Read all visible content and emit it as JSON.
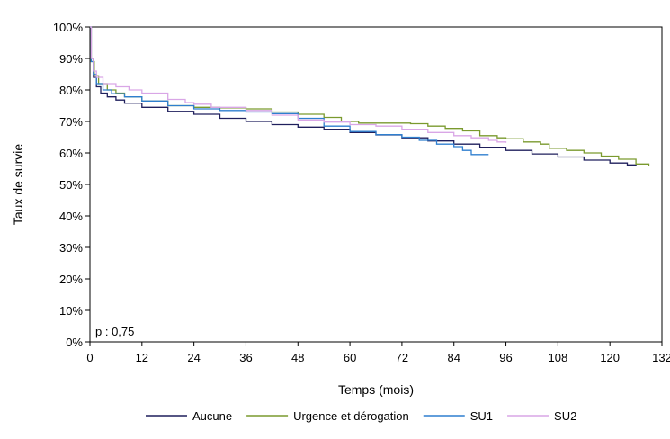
{
  "chart_data": {
    "type": "line",
    "xlabel": "Temps (mois)",
    "ylabel": "Taux de survie",
    "xlim": [
      0,
      132
    ],
    "ylim": [
      0,
      100
    ],
    "x_ticks": [
      0,
      12,
      24,
      36,
      48,
      60,
      72,
      84,
      96,
      108,
      120,
      132
    ],
    "y_ticks": [
      0,
      10,
      20,
      30,
      40,
      50,
      60,
      70,
      80,
      90,
      100
    ],
    "y_tick_labels": [
      "0%",
      "10%",
      "20%",
      "30%",
      "40%",
      "50%",
      "60%",
      "70%",
      "80%",
      "90%",
      "100%"
    ],
    "annotation": "p : 0,75",
    "grid": false,
    "legend_position": "bottom",
    "series": [
      {
        "name": "Aucune",
        "color": "#1f1f5c",
        "points": [
          [
            0,
            100
          ],
          [
            0.3,
            90
          ],
          [
            0.8,
            84
          ],
          [
            1.5,
            81
          ],
          [
            2.5,
            79
          ],
          [
            4,
            77.8
          ],
          [
            6,
            76.8
          ],
          [
            8,
            75.8
          ],
          [
            12,
            74.5
          ],
          [
            18,
            73.2
          ],
          [
            24,
            72.3
          ],
          [
            30,
            71
          ],
          [
            36,
            70
          ],
          [
            42,
            69
          ],
          [
            48,
            68.2
          ],
          [
            54,
            67.5
          ],
          [
            60,
            66.5
          ],
          [
            66,
            65.7
          ],
          [
            72,
            64.8
          ],
          [
            78,
            63.8
          ],
          [
            84,
            62.8
          ],
          [
            90,
            61.8
          ],
          [
            96,
            60.8
          ],
          [
            102,
            59.7
          ],
          [
            108,
            58.7
          ],
          [
            114,
            57.7
          ],
          [
            120,
            56.8
          ],
          [
            124,
            56.2
          ],
          [
            126,
            56
          ]
        ]
      },
      {
        "name": "Urgence et dérogation",
        "color": "#7a9a2e",
        "points": [
          [
            0,
            100
          ],
          [
            0.3,
            89
          ],
          [
            1,
            84.5
          ],
          [
            2,
            82
          ],
          [
            4,
            80
          ],
          [
            6,
            79
          ],
          [
            8,
            77.8
          ],
          [
            12,
            76.5
          ],
          [
            18,
            75
          ],
          [
            24,
            74.5
          ],
          [
            30,
            74.3
          ],
          [
            36,
            74
          ],
          [
            42,
            73
          ],
          [
            48,
            72.3
          ],
          [
            54,
            71.3
          ],
          [
            58,
            70
          ],
          [
            62,
            69.5
          ],
          [
            66,
            69.5
          ],
          [
            70,
            69.5
          ],
          [
            74,
            69.3
          ],
          [
            78,
            68.5
          ],
          [
            82,
            67.8
          ],
          [
            86,
            67
          ],
          [
            90,
            65.5
          ],
          [
            94,
            64.8
          ],
          [
            96,
            64.5
          ],
          [
            100,
            63.5
          ],
          [
            104,
            62.8
          ],
          [
            106,
            61.5
          ],
          [
            110,
            60.8
          ],
          [
            114,
            60
          ],
          [
            118,
            59
          ],
          [
            122,
            58
          ],
          [
            126,
            56.5
          ],
          [
            129,
            56
          ]
        ]
      },
      {
        "name": "SU1",
        "color": "#2f7fcf",
        "points": [
          [
            0,
            100
          ],
          [
            0.3,
            89
          ],
          [
            0.8,
            85
          ],
          [
            1.5,
            82
          ],
          [
            3,
            80
          ],
          [
            5,
            78.8
          ],
          [
            8,
            77.8
          ],
          [
            12,
            76.5
          ],
          [
            18,
            75
          ],
          [
            24,
            74
          ],
          [
            30,
            73.5
          ],
          [
            36,
            73
          ],
          [
            42,
            72.5
          ],
          [
            48,
            71
          ],
          [
            54,
            68.5
          ],
          [
            60,
            66.8
          ],
          [
            66,
            65.8
          ],
          [
            72,
            65
          ],
          [
            76,
            64
          ],
          [
            80,
            62.8
          ],
          [
            84,
            62
          ],
          [
            86,
            60.8
          ],
          [
            88,
            59.5
          ],
          [
            92,
            59.5
          ]
        ]
      },
      {
        "name": "SU2",
        "color": "#d9a6e6",
        "points": [
          [
            0,
            100
          ],
          [
            0.3,
            90
          ],
          [
            0.8,
            86
          ],
          [
            1.5,
            84
          ],
          [
            3,
            82
          ],
          [
            6,
            81
          ],
          [
            9,
            80
          ],
          [
            12,
            79
          ],
          [
            18,
            77
          ],
          [
            22,
            76
          ],
          [
            24,
            75.5
          ],
          [
            28,
            74.5
          ],
          [
            36,
            73.5
          ],
          [
            42,
            72
          ],
          [
            48,
            70.5
          ],
          [
            54,
            69.8
          ],
          [
            60,
            69
          ],
          [
            66,
            68.5
          ],
          [
            72,
            67.5
          ],
          [
            78,
            66.5
          ],
          [
            84,
            65.5
          ],
          [
            88,
            64.8
          ],
          [
            92,
            64
          ],
          [
            94,
            63.5
          ],
          [
            96,
            63.2
          ]
        ]
      }
    ]
  }
}
